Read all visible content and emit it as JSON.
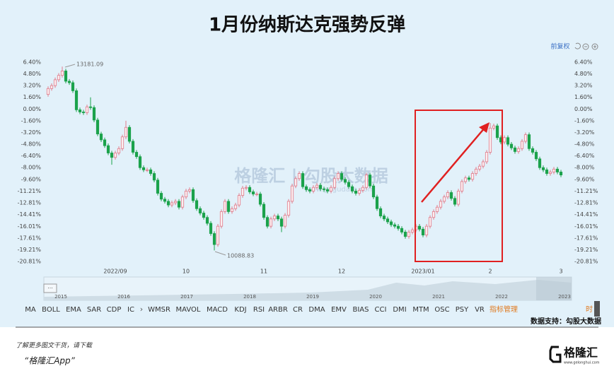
{
  "chart_data": {
    "type": "candlestick",
    "title": "1月份纳斯达克强势反弹",
    "categories": [
      null,
      null,
      null,
      null,
      null,
      null,
      null,
      null,
      null,
      null,
      null,
      null,
      null,
      null,
      null,
      null,
      null,
      null,
      null,
      "2022/09",
      null,
      null,
      null,
      null,
      null,
      null,
      null,
      null,
      null,
      null,
      null,
      null,
      null,
      null,
      null,
      null,
      null,
      null,
      null,
      "10",
      null,
      null,
      null,
      null,
      null,
      null,
      null,
      null,
      null,
      null,
      null,
      null,
      null,
      null,
      null,
      null,
      null,
      null,
      null,
      null,
      null,
      "11",
      null,
      null,
      null,
      null,
      null,
      null,
      null,
      null,
      null,
      null,
      null,
      null,
      null,
      null,
      null,
      null,
      null,
      null,
      null,
      null,
      null,
      "12",
      null,
      null,
      null,
      null,
      null,
      null,
      null,
      null,
      null,
      null,
      null,
      null,
      null,
      null,
      null,
      null,
      null,
      null,
      null,
      null,
      null,
      null,
      "2023/01",
      null,
      null,
      null,
      null,
      null,
      null,
      null,
      null,
      null,
      null,
      null,
      null,
      null,
      null,
      null,
      null,
      null,
      null,
      "2",
      null,
      null,
      null,
      null,
      null,
      null,
      null,
      null,
      null,
      null,
      null,
      null,
      null,
      null,
      null,
      null,
      null,
      null,
      null,
      "3"
    ],
    "open": [
      2.0,
      2.8,
      3.2,
      4.0,
      4.6,
      5.2,
      3.8,
      3.6,
      2.5,
      -0.1,
      -0.4,
      -0.5,
      0.3,
      0.2,
      -1.5,
      -3.4,
      -4.2,
      -5.0,
      -6.0,
      -6.6,
      -6.0,
      -5.4,
      -3.8,
      -2.5,
      -4.4,
      -5.9,
      -6.5,
      -8.0,
      -8.3,
      -8.3,
      -8.8,
      -9.7,
      -11.5,
      -12.3,
      -12.6,
      -13.1,
      -12.8,
      -12.6,
      -13.4,
      -12.0,
      -11.2,
      -11.0,
      -12.5,
      -13.6,
      -14.2,
      -14.8,
      -15.6,
      -17.0,
      -18.5,
      -16.0,
      -14.0,
      -12.6,
      -14.0,
      -13.6,
      -13.1,
      -11.8,
      -10.8,
      -10.7,
      -11.3,
      -11.6,
      -11.6,
      -13.0,
      -14.8,
      -16.0,
      -15.0,
      -14.6,
      -15.0,
      -16.0,
      -14.5,
      -12.6,
      -10.5,
      -9.5,
      -8.8,
      -10.6,
      -11.0,
      -11.2,
      -10.7,
      -10.4,
      -10.9,
      -11.0,
      -11.2,
      -10.7,
      -9.5,
      -8.8,
      -9.6,
      -10.0,
      -10.6,
      -11.2,
      -11.5,
      -11.1,
      -10.7,
      -9.0,
      -10.5,
      -12.0,
      -13.6,
      -14.6,
      -15.0,
      -15.4,
      -15.8,
      -16.0,
      -16.3,
      -16.8,
      -17.4,
      -16.8,
      -16.5,
      -16.0,
      -16.4,
      -17.2,
      -16.0,
      -14.8,
      -14.0,
      -13.4,
      -12.6,
      -12.0,
      -11.4,
      -12.2,
      -13.0,
      -11.2,
      -9.9,
      -9.4,
      -9.6,
      -8.8,
      -8.2,
      -7.8,
      -7.2,
      -5.9,
      -2.6,
      -2.3,
      -3.9,
      -4.5,
      -3.9,
      -4.8,
      -5.3,
      -5.8,
      -5.4,
      -4.4,
      -3.5,
      -5.4,
      -5.9,
      -6.8,
      -8.0,
      -8.3,
      -8.8,
      -8.6,
      -8.2,
      -8.6
    ],
    "high": [
      3.1,
      3.5,
      4.3,
      4.9,
      5.8,
      5.5,
      4.1,
      3.9,
      2.8,
      0.2,
      -0.1,
      0.6,
      1.6,
      0.5,
      -1.2,
      -3.1,
      -3.9,
      -4.7,
      -5.7,
      -5.7,
      -5.1,
      -3.5,
      -1.6,
      -2.2,
      -4.1,
      -5.6,
      -6.2,
      -7.7,
      -8.0,
      -8.0,
      -8.5,
      -9.4,
      -11.2,
      -12.0,
      -12.3,
      -12.5,
      -12.3,
      -12.3,
      -11.7,
      -10.9,
      -10.7,
      -10.7,
      -12.2,
      -13.3,
      -13.9,
      -14.5,
      -15.3,
      -16.7,
      -15.7,
      -13.7,
      -12.3,
      -12.3,
      -13.3,
      -12.8,
      -11.5,
      -10.5,
      -10.4,
      -10.4,
      -11.0,
      -11.3,
      -11.3,
      -12.7,
      -14.5,
      -14.7,
      -14.3,
      -14.3,
      -14.7,
      -14.2,
      -12.3,
      -10.2,
      -9.2,
      -8.5,
      -8.5,
      -10.3,
      -10.7,
      -10.4,
      -10.1,
      -10.1,
      -10.6,
      -10.7,
      -10.4,
      -9.2,
      -8.5,
      -8.5,
      -9.3,
      -9.7,
      -10.3,
      -10.9,
      -10.8,
      -10.4,
      -8.7,
      -8.7,
      -10.2,
      -11.7,
      -13.3,
      -14.3,
      -14.7,
      -15.1,
      -15.5,
      -15.7,
      -16.0,
      -16.5,
      -16.5,
      -16.2,
      -15.7,
      -15.7,
      -16.1,
      -15.7,
      -14.5,
      -13.7,
      -13.1,
      -12.3,
      -11.7,
      -11.1,
      -11.1,
      -11.9,
      -10.9,
      -9.6,
      -9.1,
      -9.1,
      -8.5,
      -7.9,
      -7.5,
      -6.9,
      -5.6,
      -1.9,
      -2.0,
      -2.0,
      -3.6,
      -3.6,
      -3.6,
      -4.5,
      -5.0,
      -5.1,
      -4.1,
      -3.2,
      -3.2,
      -5.1,
      -5.6,
      -6.5,
      -7.7,
      -8.0,
      -8.3,
      -7.9,
      -7.9,
      -8.3
    ],
    "low": [
      1.7,
      2.5,
      2.9,
      3.7,
      4.3,
      3.5,
      3.3,
      2.2,
      -0.4,
      -0.7,
      -0.8,
      -0.8,
      -0.1,
      -1.8,
      -3.7,
      -4.5,
      -5.3,
      -6.3,
      -7.6,
      -6.9,
      -6.3,
      -5.7,
      -4.1,
      -4.7,
      -6.2,
      -6.8,
      -8.3,
      -8.6,
      -8.6,
      -9.1,
      -10.0,
      -11.8,
      -12.6,
      -12.9,
      -13.4,
      -13.4,
      -13.1,
      -13.7,
      -13.7,
      -12.3,
      -11.5,
      -12.8,
      -13.9,
      -14.5,
      -15.1,
      -15.9,
      -17.3,
      -19.3,
      -18.8,
      -16.3,
      -14.3,
      -14.3,
      -14.3,
      -13.9,
      -13.4,
      -12.1,
      -11.1,
      -11.6,
      -11.9,
      -11.9,
      -13.3,
      -15.1,
      -16.3,
      -16.3,
      -15.3,
      -15.3,
      -16.8,
      -16.3,
      -14.8,
      -12.9,
      -10.8,
      -9.8,
      -10.9,
      -11.3,
      -11.5,
      -11.5,
      -11.0,
      -11.2,
      -11.3,
      -11.5,
      -11.5,
      -11.0,
      -9.8,
      -9.9,
      -10.3,
      -10.9,
      -11.5,
      -11.8,
      -11.8,
      -11.4,
      -11.0,
      -10.8,
      -12.3,
      -13.9,
      -14.9,
      -15.3,
      -15.7,
      -16.1,
      -16.3,
      -16.6,
      -17.1,
      -17.7,
      -17.7,
      -17.1,
      -16.8,
      -16.7,
      -17.5,
      -17.5,
      -16.3,
      -15.1,
      -14.3,
      -13.7,
      -12.9,
      -12.3,
      -12.5,
      -13.3,
      -13.3,
      -11.5,
      -10.2,
      -9.9,
      -9.9,
      -9.1,
      -8.5,
      -8.1,
      -7.5,
      -6.2,
      -2.9,
      -4.2,
      -4.8,
      -4.8,
      -5.1,
      -5.6,
      -6.1,
      -6.1,
      -5.7,
      -4.7,
      -5.7,
      -6.2,
      -7.1,
      -8.3,
      -8.6,
      -9.1,
      -9.1,
      -8.9,
      -8.9,
      -9.3
    ],
    "close": [
      2.8,
      3.2,
      4.0,
      4.6,
      5.2,
      3.8,
      3.6,
      2.5,
      -0.1,
      -0.4,
      -0.5,
      0.3,
      0.2,
      -1.5,
      -3.4,
      -4.2,
      -5.0,
      -6.0,
      -6.6,
      -6.0,
      -5.4,
      -3.8,
      -2.5,
      -4.4,
      -5.9,
      -6.5,
      -8.0,
      -8.3,
      -8.3,
      -8.8,
      -9.7,
      -11.5,
      -12.3,
      -12.6,
      -13.1,
      -12.8,
      -12.6,
      -13.4,
      -12.0,
      -11.2,
      -11.0,
      -12.5,
      -13.6,
      -14.2,
      -14.8,
      -15.6,
      -17.0,
      -18.5,
      -16.0,
      -14.0,
      -12.6,
      -14.0,
      -13.6,
      -13.1,
      -11.8,
      -10.8,
      -10.7,
      -11.3,
      -11.6,
      -11.6,
      -13.0,
      -14.8,
      -16.0,
      -15.0,
      -14.6,
      -15.0,
      -16.0,
      -14.5,
      -12.6,
      -10.5,
      -9.5,
      -8.8,
      -10.6,
      -11.0,
      -11.2,
      -10.7,
      -10.4,
      -10.9,
      -11.0,
      -11.2,
      -10.7,
      -9.5,
      -8.8,
      -9.6,
      -10.0,
      -10.6,
      -11.2,
      -11.5,
      -11.1,
      -10.7,
      -9.0,
      -10.5,
      -12.0,
      -13.6,
      -14.6,
      -15.0,
      -15.4,
      -15.8,
      -16.0,
      -16.3,
      -16.8,
      -17.4,
      -16.8,
      -16.5,
      -16.0,
      -16.4,
      -17.2,
      -16.0,
      -14.8,
      -14.0,
      -13.4,
      -12.6,
      -12.0,
      -11.4,
      -12.2,
      -13.0,
      -11.2,
      -9.9,
      -9.4,
      -9.6,
      -8.8,
      -8.2,
      -7.8,
      -7.2,
      -5.9,
      -2.6,
      -2.3,
      -3.9,
      -4.5,
      -3.9,
      -4.8,
      -5.3,
      -5.8,
      -5.4,
      -4.4,
      -3.5,
      -5.4,
      -5.9,
      -6.8,
      -8.0,
      -8.3,
      -8.8,
      -8.6,
      -8.2,
      -8.6,
      -9.0
    ],
    "up_color": "#e07a8a",
    "down_color": "#1ba24b",
    "ylim": [
      -20.81,
      6.4
    ],
    "yticks": [
      {
        "value": 6.4,
        "label": "6.40%"
      },
      {
        "value": 4.8,
        "label": "4.80%"
      },
      {
        "value": 3.2,
        "label": "3.20%"
      },
      {
        "value": 1.6,
        "label": "1.60%"
      },
      {
        "value": 0,
        "label": "0.00%"
      },
      {
        "value": -1.6,
        "label": "-1.60%"
      },
      {
        "value": -3.2,
        "label": "-3.20%"
      },
      {
        "value": -4.8,
        "label": "-4.80%"
      },
      {
        "value": -6.4,
        "label": "-6.40%"
      },
      {
        "value": -8.0,
        "label": "-8.00%"
      },
      {
        "value": -9.6,
        "label": "-9.60%"
      },
      {
        "value": -11.21,
        "label": "-11.21%"
      },
      {
        "value": -12.81,
        "label": "-12.81%"
      },
      {
        "value": -14.41,
        "label": "-14.41%"
      },
      {
        "value": -16.01,
        "label": "-16.01%"
      },
      {
        "value": -17.61,
        "label": "-17.61%"
      },
      {
        "value": -19.21,
        "label": "-19.21%"
      },
      {
        "value": -20.81,
        "label": "-20.81%"
      }
    ],
    "grid": false,
    "annotations": [
      "13181.09",
      "10088.83"
    ]
  },
  "ui": {
    "adjust": "前复权",
    "watermark": "格隆汇 | 勾股大数据",
    "watermark_url": "www.gogudata.com",
    "navigator_years": [
      "2015",
      "2016",
      "2017",
      "2018",
      "2019",
      "2020",
      "2021",
      "2022",
      "2023"
    ],
    "indicators": [
      "MA",
      "BOLL",
      "EMA",
      "SAR",
      "CDP",
      "IC",
      "WMSR",
      "MAVOL",
      "MACD",
      "KDJ",
      "RSI",
      "ARBR",
      "CR",
      "DMA",
      "EMV",
      "BIAS",
      "CCI",
      "DMI",
      "MTM",
      "OSC",
      "PSY",
      "VR"
    ],
    "indicator_manage": "指标管理",
    "time_cut": "时",
    "data_source": "数据支持：勾股大数据",
    "footer_note": "了解更多图文干货，请下载",
    "footer_app": "“格隆汇App”",
    "logo": "格隆汇",
    "logo_url": "www.gelonghui.com"
  }
}
